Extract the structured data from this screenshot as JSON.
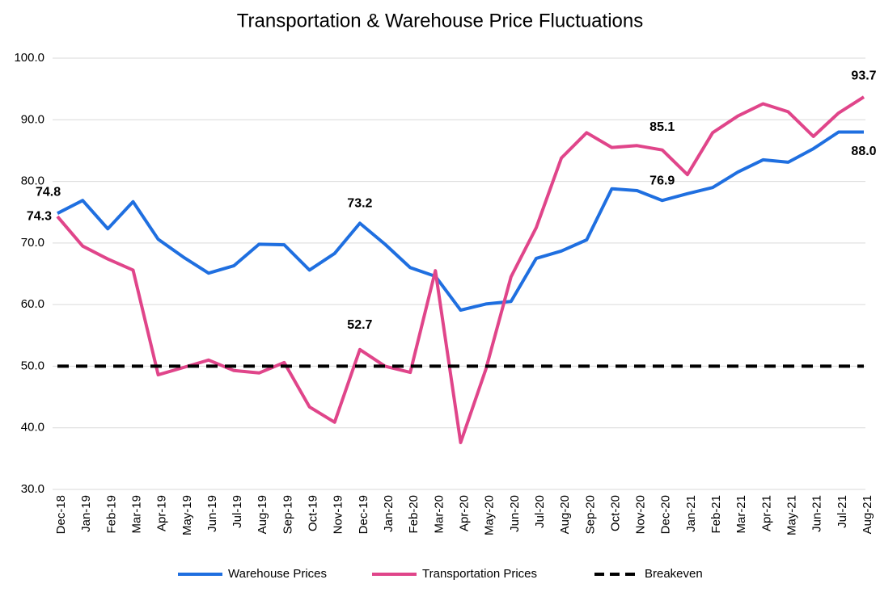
{
  "chart_data": {
    "type": "line",
    "title": "Transportation & Warehouse Price Fluctuations",
    "categories": [
      "Dec-18",
      "Jan-19",
      "Feb-19",
      "Mar-19",
      "Apr-19",
      "May-19",
      "Jun-19",
      "Jul-19",
      "Aug-19",
      "Sep-19",
      "Oct-19",
      "Nov-19",
      "Dec-19",
      "Jan-20",
      "Feb-20",
      "Mar-20",
      "Apr-20",
      "May-20",
      "Jun-20",
      "Jul-20",
      "Aug-20",
      "Sep-20",
      "Oct-20",
      "Nov-20",
      "Dec-20",
      "Jan-21",
      "Feb-21",
      "Mar-21",
      "Apr-21",
      "May-21",
      "Jun-21",
      "Jul-21",
      "Aug-21"
    ],
    "series": [
      {
        "name": "Warehouse Prices",
        "color": "#1f6fe0",
        "dashed": false,
        "values": [
          74.8,
          76.9,
          72.3,
          76.7,
          70.6,
          67.7,
          65.1,
          66.3,
          69.8,
          69.7,
          65.6,
          68.3,
          73.2,
          69.8,
          66.0,
          64.6,
          59.1,
          60.1,
          60.5,
          67.5,
          68.7,
          70.5,
          78.8,
          78.5,
          76.9,
          78.0,
          79.0,
          81.5,
          83.5,
          83.1,
          85.3,
          88.0,
          88.0
        ],
        "value_labels": [
          "74.8",
          null,
          null,
          null,
          null,
          null,
          null,
          null,
          null,
          null,
          null,
          null,
          "73.2",
          null,
          null,
          null,
          null,
          null,
          null,
          null,
          null,
          null,
          null,
          null,
          "76.9",
          null,
          null,
          null,
          null,
          null,
          null,
          null,
          "88.0"
        ]
      },
      {
        "name": "Transportation Prices",
        "color": "#e0458a",
        "dashed": false,
        "values": [
          74.3,
          69.5,
          67.4,
          65.6,
          48.6,
          49.8,
          51.0,
          49.3,
          48.9,
          50.6,
          43.4,
          40.9,
          52.7,
          50.0,
          49.0,
          65.5,
          37.6,
          49.5,
          64.5,
          72.5,
          83.8,
          87.9,
          85.5,
          85.8,
          85.1,
          81.1,
          87.9,
          90.6,
          92.6,
          91.3,
          87.3,
          91.1,
          93.7
        ],
        "value_labels": [
          "74.3",
          null,
          null,
          null,
          null,
          null,
          null,
          null,
          null,
          null,
          null,
          null,
          "52.7",
          null,
          null,
          null,
          null,
          null,
          null,
          null,
          null,
          null,
          null,
          null,
          "85.1",
          null,
          null,
          null,
          null,
          null,
          null,
          null,
          "93.7"
        ]
      },
      {
        "name": "Breakeven",
        "color": "#000000",
        "dashed": true,
        "values": [
          50,
          50,
          50,
          50,
          50,
          50,
          50,
          50,
          50,
          50,
          50,
          50,
          50,
          50,
          50,
          50,
          50,
          50,
          50,
          50,
          50,
          50,
          50,
          50,
          50,
          50,
          50,
          50,
          50,
          50,
          50,
          50,
          50
        ]
      }
    ],
    "ylim": [
      30,
      100
    ],
    "yticks": [
      {
        "value": 30,
        "label": "30.0"
      },
      {
        "value": 40,
        "label": "40.0"
      },
      {
        "value": 50,
        "label": "50.0"
      },
      {
        "value": 60,
        "label": "60.0"
      },
      {
        "value": 70,
        "label": "70.0"
      },
      {
        "value": 80,
        "label": "80.0"
      },
      {
        "value": 90,
        "label": "90.0"
      },
      {
        "value": 100,
        "label": "100.0"
      }
    ],
    "grid": true,
    "legend": "bottom"
  }
}
